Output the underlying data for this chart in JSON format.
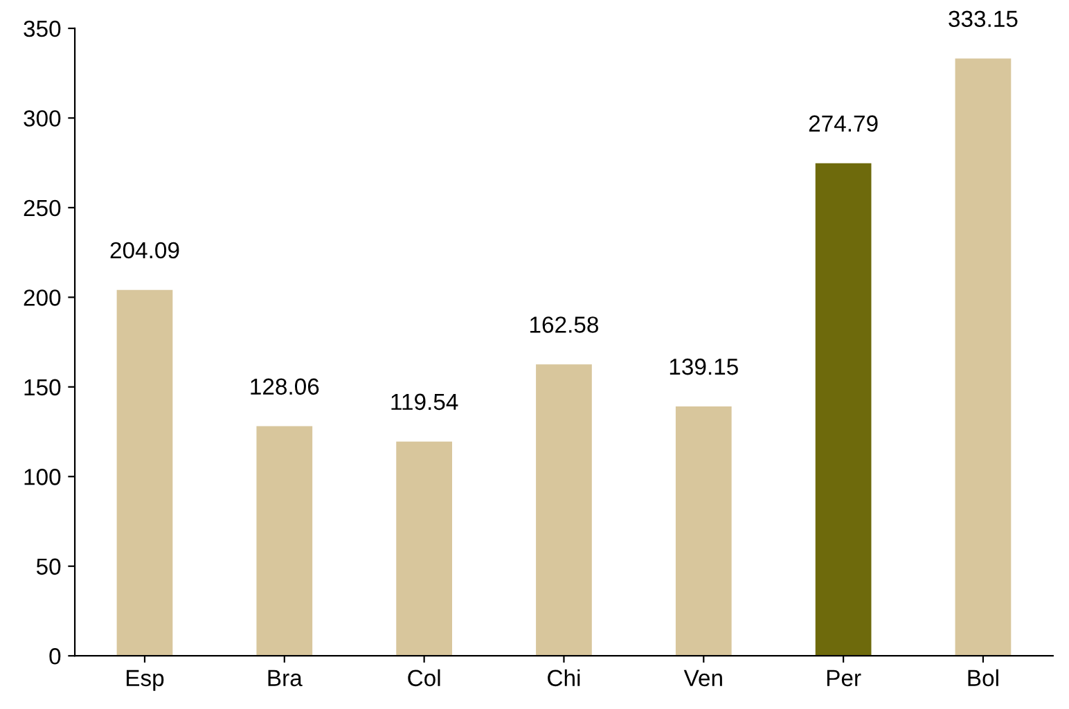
{
  "chart_data": {
    "type": "bar",
    "categories": [
      "Esp",
      "Bra",
      "Col",
      "Chi",
      "Ven",
      "Per",
      "Bol"
    ],
    "values": [
      204.09,
      128.06,
      119.54,
      162.58,
      139.15,
      274.79,
      333.15
    ],
    "colors": [
      "#d8c69c",
      "#d8c69c",
      "#d8c69c",
      "#d8c69c",
      "#d8c69c",
      "#6e6a0c",
      "#d8c69c"
    ],
    "ylim": [
      0,
      350
    ],
    "yticks": [
      0,
      50,
      100,
      150,
      200,
      250,
      300,
      350
    ],
    "data_labels": true,
    "grid": false
  }
}
